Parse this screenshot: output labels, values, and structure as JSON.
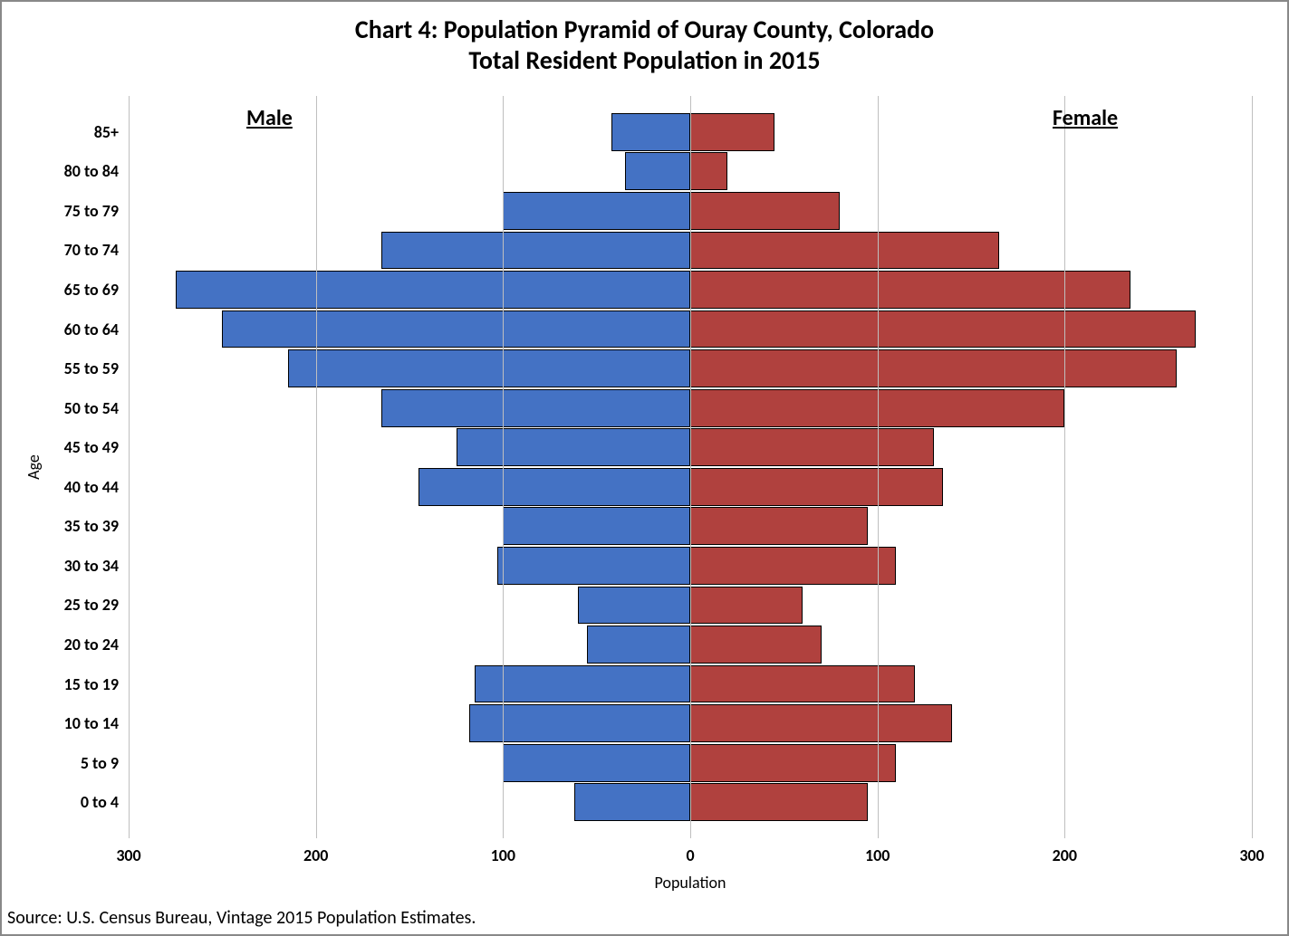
{
  "chart": {
    "type": "population-pyramid",
    "title_line1": "Chart 4: Population Pyramid of Ouray County, Colorado",
    "title_line2": "Total Resident Population in 2015",
    "title_fontsize": 28,
    "title_color": "#000000",
    "background_color": "#ffffff",
    "border_color": "#888888",
    "grid_color": "#bfbfbf",
    "male_color": "#4472c4",
    "female_color": "#b0413e",
    "bar_border_color": "#000000",
    "male_label": "Male",
    "female_label": "Female",
    "series_label_fontsize": 24,
    "y_axis_title": "Age",
    "x_axis_title": "Population",
    "axis_title_fontsize": 18,
    "tick_label_fontsize": 18,
    "x_ticks": [
      300,
      200,
      100,
      0,
      100,
      200,
      300
    ],
    "x_tick_labels": [
      "300",
      "200",
      "100",
      "0",
      "100",
      "200",
      "300"
    ],
    "xlim_abs": 300,
    "age_groups": [
      {
        "label": "85+",
        "male": 42,
        "female": 45
      },
      {
        "label": "80 to 84",
        "male": 35,
        "female": 20
      },
      {
        "label": "75 to 79",
        "male": 100,
        "female": 80
      },
      {
        "label": "70 to 74",
        "male": 165,
        "female": 165
      },
      {
        "label": "65 to 69",
        "male": 275,
        "female": 235
      },
      {
        "label": "60 to 64",
        "male": 250,
        "female": 270
      },
      {
        "label": "55 to 59",
        "male": 215,
        "female": 260
      },
      {
        "label": "50 to 54",
        "male": 165,
        "female": 200
      },
      {
        "label": "45 to 49",
        "male": 125,
        "female": 130
      },
      {
        "label": "40 to 44",
        "male": 145,
        "female": 135
      },
      {
        "label": "35 to 39",
        "male": 100,
        "female": 95
      },
      {
        "label": "30 to 34",
        "male": 103,
        "female": 110
      },
      {
        "label": "25 to 29",
        "male": 60,
        "female": 60
      },
      {
        "label": "20 to 24",
        "male": 55,
        "female": 70
      },
      {
        "label": "15 to 19",
        "male": 115,
        "female": 120
      },
      {
        "label": "10 to 14",
        "male": 118,
        "female": 140
      },
      {
        "label": "5 to 9",
        "male": 100,
        "female": 110
      },
      {
        "label": "0 to 4",
        "male": 62,
        "female": 95
      }
    ],
    "source_text": "Source: U.S. Census Bureau, Vintage 2015 Population Estimates.",
    "source_fontsize": 20
  }
}
